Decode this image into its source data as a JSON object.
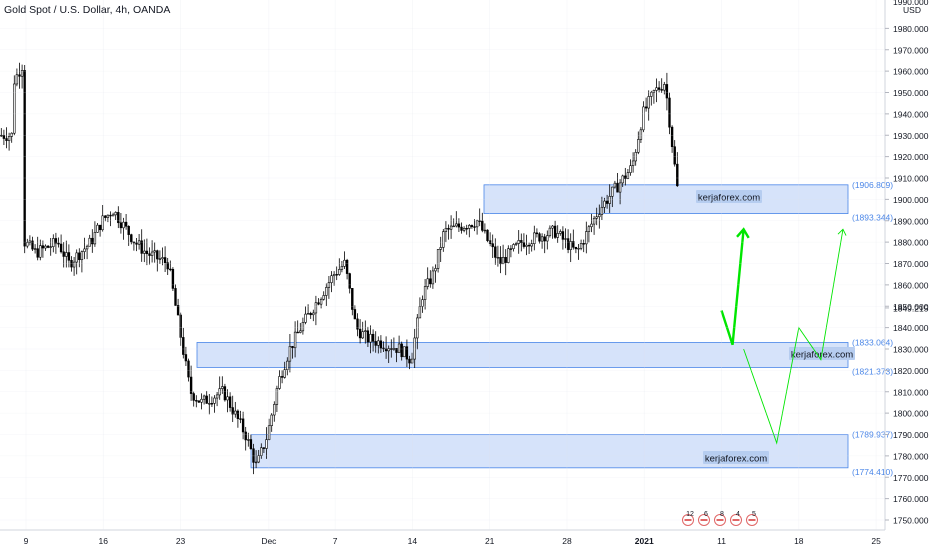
{
  "header": {
    "title": "Gold Spot / U.S. Dollar, 4h, OANDA"
  },
  "price_axis": {
    "currency_label": "USD",
    "top_partial_label": "1990.000",
    "ticks": [
      "1980.000",
      "1970.000",
      "1960.000",
      "1950.000",
      "1940.000",
      "1930.000",
      "1920.000",
      "1910.000",
      "1900.000",
      "1890.000",
      "1880.000",
      "1870.000",
      "1860.000",
      "1850.000",
      "1840.000",
      "1830.000",
      "1820.000",
      "1810.000",
      "1800.000",
      "1790.000",
      "1780.000",
      "1770.000",
      "1760.000",
      "1750.000"
    ],
    "current_price": "1849.215"
  },
  "time_axis": {
    "ticks": [
      {
        "label": "9",
        "bold": false
      },
      {
        "label": "16",
        "bold": false
      },
      {
        "label": "23",
        "bold": false
      },
      {
        "label": "Dec",
        "bold": false
      },
      {
        "label": "7",
        "bold": false
      },
      {
        "label": "14",
        "bold": false
      },
      {
        "label": "21",
        "bold": false
      },
      {
        "label": "28",
        "bold": false
      },
      {
        "label": "2021",
        "bold": true
      },
      {
        "label": "11",
        "bold": false
      },
      {
        "label": "18",
        "bold": false
      },
      {
        "label": "25",
        "bold": false
      }
    ]
  },
  "zones": [
    {
      "top": "1906.809",
      "bottom": "1893.344",
      "watermark": "kerjaforex.com"
    },
    {
      "top": "1833.064",
      "bottom": "1821.373",
      "watermark": "kerjaforex.com"
    },
    {
      "top": "1789.937",
      "bottom": "1774.410",
      "watermark": "kerjaforex.com"
    }
  ],
  "event_markers": [
    "12",
    "6",
    "8",
    "4",
    "5"
  ],
  "colors": {
    "up": "#26a69a",
    "candle": "#000000",
    "zone_fill": "#d6e3fa",
    "zone_border": "#4a86e8",
    "zone_label": "#4a86e8",
    "arrow": "#00e600",
    "axis_text": "#131722",
    "grid": "#e0e3eb",
    "badge": "#b6cdf0"
  },
  "chart_data": {
    "type": "candlestick",
    "title": "Gold Spot / U.S. Dollar, 4h, OANDA",
    "y_unit": "USD",
    "ylim": [
      1745,
      1995
    ],
    "x_range": [
      "Nov 8",
      "Jan 29"
    ],
    "x_ticks": [
      "9",
      "16",
      "23",
      "Dec",
      "7",
      "14",
      "21",
      "28",
      "2021",
      "11",
      "18",
      "25"
    ],
    "last_price": 1849.215,
    "series": [
      {
        "kind": "ohlc_path_approx",
        "points": [
          [
            "Nov 8",
            1930
          ],
          [
            "Nov 8",
            1955
          ],
          [
            "Nov 9",
            1965
          ],
          [
            "Nov 9",
            1880
          ],
          [
            "Nov 10",
            1875
          ],
          [
            "Nov 12",
            1880
          ],
          [
            "Nov 13",
            1870
          ],
          [
            "Nov 15",
            1880
          ],
          [
            "Nov 16",
            1890
          ],
          [
            "Nov 17",
            1895
          ],
          [
            "Nov 19",
            1880
          ],
          [
            "Nov 20",
            1875
          ],
          [
            "Nov 22",
            1870
          ],
          [
            "Nov 23",
            1840
          ],
          [
            "Nov 24",
            1810
          ],
          [
            "Nov 25",
            1805
          ],
          [
            "Nov 27",
            1810
          ],
          [
            "Nov 29",
            1790
          ],
          [
            "Nov 30",
            1775
          ],
          [
            "Dec 1",
            1790
          ],
          [
            "Dec 2",
            1815
          ],
          [
            "Dec 3",
            1830
          ],
          [
            "Dec 4",
            1840
          ],
          [
            "Dec 7",
            1865
          ],
          [
            "Dec 8",
            1870
          ],
          [
            "Dec 9",
            1840
          ],
          [
            "Dec 10",
            1835
          ],
          [
            "Dec 13",
            1830
          ],
          [
            "Dec 14",
            1825
          ],
          [
            "Dec 15",
            1855
          ],
          [
            "Dec 16",
            1865
          ],
          [
            "Dec 17",
            1885
          ],
          [
            "Dec 20",
            1890
          ],
          [
            "Dec 21",
            1880
          ],
          [
            "Dec 22",
            1870
          ],
          [
            "Dec 24",
            1880
          ],
          [
            "Dec 27",
            1885
          ],
          [
            "Dec 28",
            1880
          ],
          [
            "Dec 29",
            1875
          ],
          [
            "Dec 31",
            1895
          ],
          [
            "Jan 3",
            1915
          ],
          [
            "Jan 4",
            1940
          ],
          [
            "Jan 5",
            1950
          ],
          [
            "Jan 6",
            1955
          ],
          [
            "Jan 7",
            1910
          ],
          [
            "Jan 8",
            1870
          ],
          [
            "Jan 8",
            1840
          ],
          [
            "Jan 11",
            1848
          ]
        ]
      }
    ],
    "zones": [
      {
        "top": 1906.809,
        "bottom": 1893.344
      },
      {
        "top": 1833.064,
        "bottom": 1821.373
      },
      {
        "top": 1789.937,
        "bottom": 1774.41
      }
    ],
    "projections": [
      {
        "style": "bold",
        "points": [
          [
            "Jan 11",
            1848
          ],
          [
            "Jan 12",
            1832
          ],
          [
            "Jan 13",
            1886
          ]
        ]
      },
      {
        "style": "thin",
        "points": [
          [
            "Jan 13",
            1830
          ],
          [
            "Jan 16",
            1786
          ],
          [
            "Jan 18",
            1840
          ],
          [
            "Jan 20",
            1825
          ],
          [
            "Jan 22",
            1886
          ]
        ]
      }
    ]
  }
}
